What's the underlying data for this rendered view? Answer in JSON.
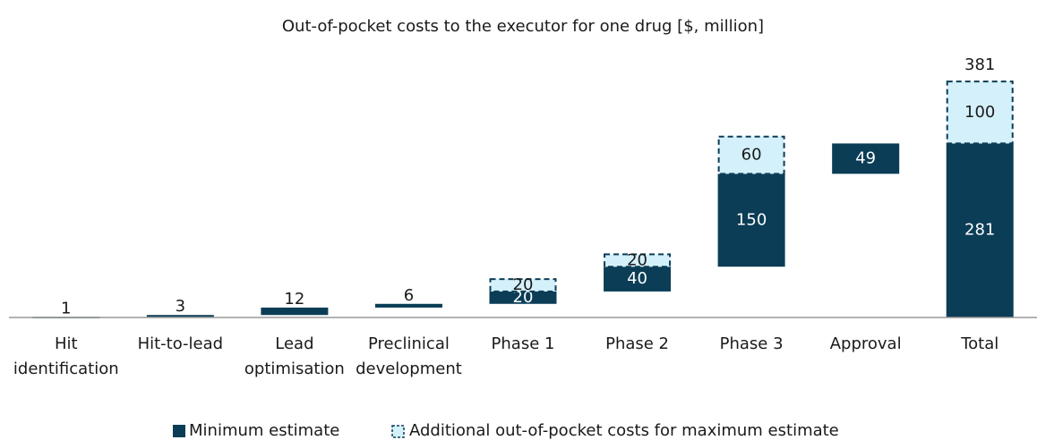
{
  "chart_data": {
    "type": "waterfall",
    "title": "Out-of-pocket costs to the executor for one drug [$, million]",
    "categories": [
      [
        "Hit",
        "identification"
      ],
      [
        "Hit-to-lead"
      ],
      [
        "Lead",
        "optimisation"
      ],
      [
        "Preclinical",
        "development"
      ],
      [
        "Phase 1"
      ],
      [
        "Phase 2"
      ],
      [
        "Phase 3"
      ],
      [
        "Approval"
      ],
      [
        "Total"
      ]
    ],
    "series": [
      {
        "name": "Minimum estimate",
        "color": "#0b3d56",
        "values": [
          1,
          3,
          12,
          6,
          20,
          40,
          150,
          49,
          281
        ]
      },
      {
        "name": "Additional out-of-pocket costs for maximum estimate",
        "color": "#d4f0fb",
        "values": [
          null,
          null,
          null,
          null,
          20,
          20,
          60,
          null,
          100
        ]
      }
    ],
    "total_max": 381,
    "ylim": [
      0,
      400
    ]
  }
}
